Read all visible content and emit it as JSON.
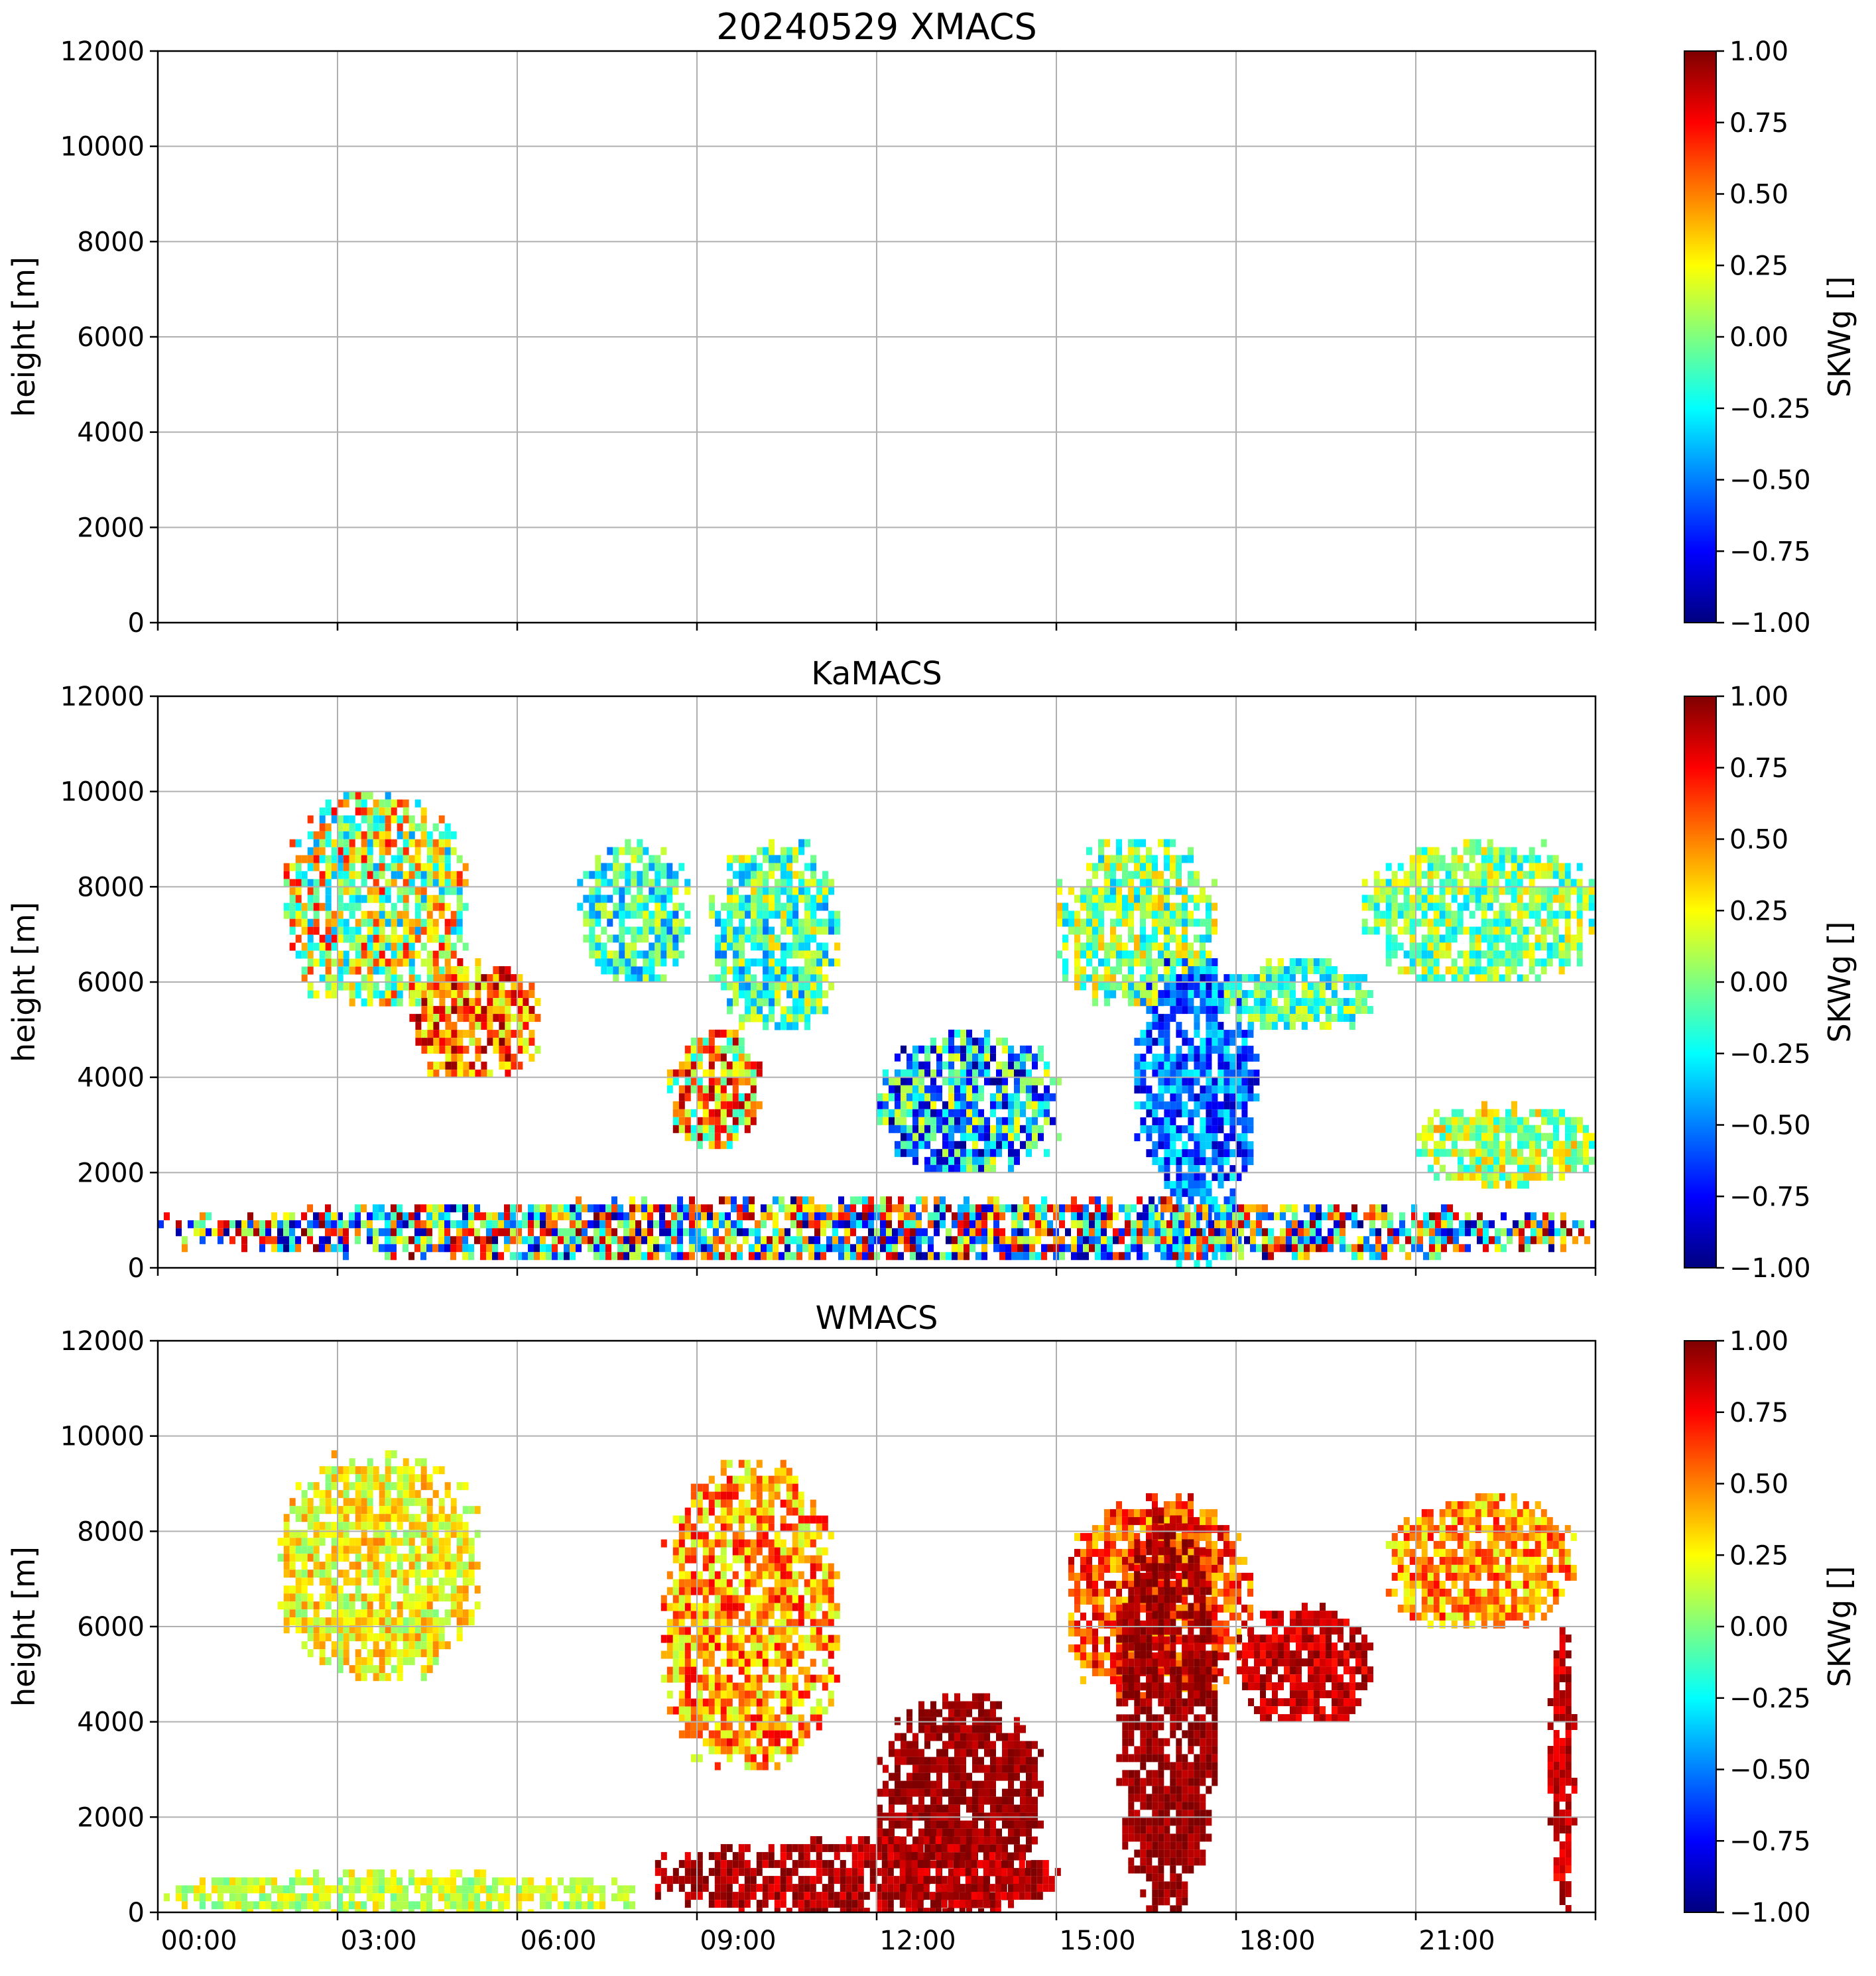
{
  "figure": {
    "title": "20240529 XMACS"
  },
  "colormap": {
    "name": "jet",
    "stops": [
      "#00007f",
      "#0000ff",
      "#007fff",
      "#00ffff",
      "#7fff7f",
      "#ffff00",
      "#ff7f00",
      "#ff0000",
      "#7f0000"
    ]
  },
  "chart_data": [
    {
      "type": "heatmap",
      "title": "",
      "ylabel": "height [m]",
      "xlabel": "",
      "xlim": [
        "00:00",
        "24:00"
      ],
      "ylim": [
        0,
        12000
      ],
      "yticks": [
        "0",
        "2000",
        "4000",
        "6000",
        "8000",
        "10000",
        "12000"
      ],
      "xticks": [],
      "grid": true,
      "colorbar": {
        "label": "SKWg []",
        "range": [
          -1.0,
          1.0
        ],
        "ticks": [
          "−1.00",
          "−0.75",
          "−0.50",
          "−0.25",
          "0.00",
          "0.25",
          "0.50",
          "0.75",
          "1.00"
        ]
      },
      "regions": []
    },
    {
      "type": "heatmap",
      "title": "KaMACS",
      "ylabel": "height [m]",
      "xlabel": "",
      "xlim": [
        "00:00",
        "24:00"
      ],
      "ylim": [
        0,
        12000
      ],
      "yticks": [
        "0",
        "2000",
        "4000",
        "6000",
        "8000",
        "10000",
        "12000"
      ],
      "xticks": [],
      "grid": true,
      "colorbar": {
        "label": "SKWg []",
        "range": [
          -1.0,
          1.0
        ],
        "ticks": [
          "−1.00",
          "−0.75",
          "−0.50",
          "−0.25",
          "0.00",
          "0.25",
          "0.50",
          "0.75",
          "1.00"
        ]
      },
      "regions": [
        {
          "t0": 2.1,
          "t1": 5.1,
          "h0": 5500,
          "h1": 10000,
          "skw_mean": 0.15,
          "skw_spread": 0.6
        },
        {
          "t0": 4.2,
          "t1": 6.3,
          "h0": 4000,
          "h1": 6500,
          "skw_mean": 0.55,
          "skw_spread": 0.45
        },
        {
          "t0": 7.0,
          "t1": 8.8,
          "h0": 6000,
          "h1": 9000,
          "skw_mean": -0.15,
          "skw_spread": 0.4
        },
        {
          "t0": 8.5,
          "t1": 10.0,
          "h0": 2500,
          "h1": 5000,
          "skw_mean": 0.35,
          "skw_spread": 0.6
        },
        {
          "t0": 9.2,
          "t1": 11.3,
          "h0": 5000,
          "h1": 9000,
          "skw_mean": -0.1,
          "skw_spread": 0.45
        },
        {
          "t0": 12.0,
          "t1": 15.0,
          "h0": 2000,
          "h1": 5000,
          "skw_mean": -0.35,
          "skw_spread": 0.65
        },
        {
          "t0": 15.0,
          "t1": 17.6,
          "h0": 5500,
          "h1": 9000,
          "skw_mean": 0.0,
          "skw_spread": 0.4
        },
        {
          "t0": 16.3,
          "t1": 18.3,
          "h0": 1500,
          "h1": 6500,
          "skw_mean": -0.55,
          "skw_spread": 0.35
        },
        {
          "t0": 17.7,
          "t1": 20.2,
          "h0": 5000,
          "h1": 6500,
          "skw_mean": -0.1,
          "skw_spread": 0.35
        },
        {
          "t0": 20.1,
          "t1": 24.0,
          "h0": 6000,
          "h1": 9000,
          "skw_mean": 0.0,
          "skw_spread": 0.35
        },
        {
          "t0": 21.0,
          "t1": 23.9,
          "h0": 1800,
          "h1": 3500,
          "skw_mean": 0.1,
          "skw_spread": 0.35
        },
        {
          "t0": 16.6,
          "t1": 18.0,
          "h0": 0,
          "h1": 2000,
          "skw_mean": -0.4,
          "skw_spread": 0.25
        },
        {
          "t0": 0.0,
          "t1": 24.0,
          "h0": 200,
          "h1": 1500,
          "skw_mean": 0.0,
          "skw_spread": 1.0
        }
      ]
    },
    {
      "type": "heatmap",
      "title": "WMACS",
      "ylabel": "height [m]",
      "xlabel": "",
      "xlim": [
        "00:00",
        "24:00"
      ],
      "ylim": [
        0,
        12000
      ],
      "yticks": [
        "0",
        "2000",
        "4000",
        "6000",
        "8000",
        "10000",
        "12000"
      ],
      "xticks": [
        "00:00",
        "03:00",
        "06:00",
        "09:00",
        "12:00",
        "15:00",
        "18:00",
        "21:00"
      ],
      "grid": true,
      "colorbar": {
        "label": "SKWg []",
        "range": [
          -1.0,
          1.0
        ],
        "ticks": [
          "−1.00",
          "−0.75",
          "−0.50",
          "−0.25",
          "0.00",
          "0.25",
          "0.50",
          "0.75",
          "1.00"
        ]
      },
      "regions": [
        {
          "t0": 2.0,
          "t1": 5.3,
          "h0": 5000,
          "h1": 9700,
          "skw_mean": 0.25,
          "skw_spread": 0.25
        },
        {
          "t0": 8.4,
          "t1": 11.3,
          "h0": 3000,
          "h1": 9500,
          "skw_mean": 0.45,
          "skw_spread": 0.35
        },
        {
          "t0": 12.0,
          "t1": 14.7,
          "h0": 0,
          "h1": 4600,
          "skw_mean": 0.95,
          "skw_spread": 0.1
        },
        {
          "t0": 15.1,
          "t1": 18.2,
          "h0": 4500,
          "h1": 8800,
          "skw_mean": 0.6,
          "skw_spread": 0.3
        },
        {
          "t0": 16.0,
          "t1": 17.6,
          "h0": 0,
          "h1": 8500,
          "skw_mean": 0.95,
          "skw_spread": 0.1
        },
        {
          "t0": 18.0,
          "t1": 20.2,
          "h0": 4000,
          "h1": 6500,
          "skw_mean": 0.85,
          "skw_spread": 0.15
        },
        {
          "t0": 20.5,
          "t1": 23.6,
          "h0": 6000,
          "h1": 8800,
          "skw_mean": 0.45,
          "skw_spread": 0.3
        },
        {
          "t0": 23.2,
          "t1": 23.6,
          "h0": 0,
          "h1": 6000,
          "skw_mean": 0.85,
          "skw_spread": 0.15
        },
        {
          "t0": 8.3,
          "t1": 15.0,
          "h0": 0,
          "h1": 1600,
          "skw_mean": 0.9,
          "skw_spread": 0.15
        },
        {
          "t0": 0.0,
          "t1": 8.0,
          "h0": 0,
          "h1": 900,
          "skw_mean": 0.15,
          "skw_spread": 0.2
        }
      ]
    }
  ]
}
